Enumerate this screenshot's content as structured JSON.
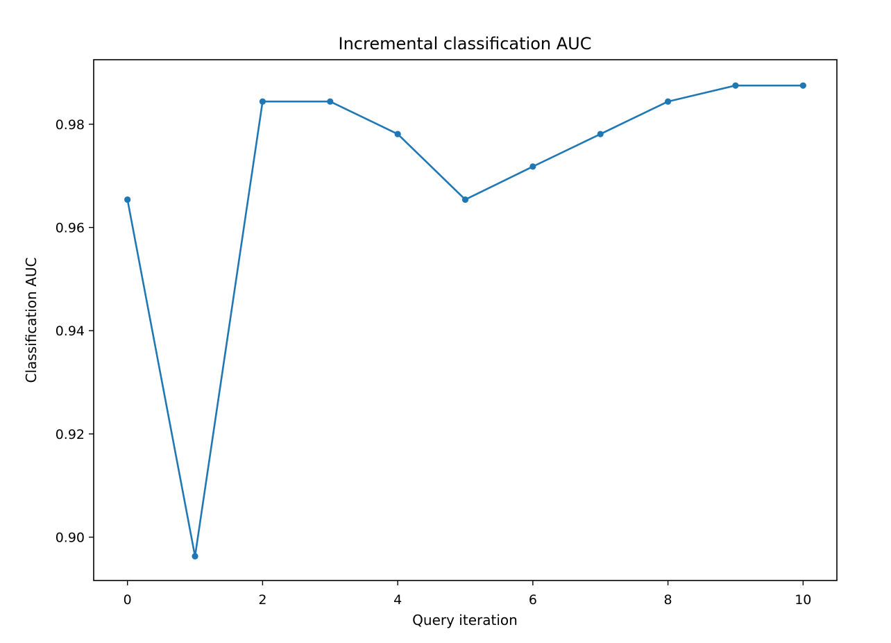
{
  "chart_data": {
    "type": "line",
    "title": "Incremental classification AUC",
    "xlabel": "Query iteration",
    "ylabel": "Classification AUC",
    "xlim": [
      -0.5,
      10.5
    ],
    "ylim": [
      0.8916,
      0.9925
    ],
    "x_ticks": [
      0,
      2,
      4,
      6,
      8,
      10
    ],
    "y_ticks": [
      0.9,
      0.92,
      0.94,
      0.96,
      0.98
    ],
    "x_tick_labels": [
      "0",
      "2",
      "4",
      "6",
      "8",
      "10"
    ],
    "y_tick_labels": [
      "0.90",
      "0.92",
      "0.94",
      "0.96",
      "0.98"
    ],
    "grid": false,
    "legend": "none",
    "series": [
      {
        "color": "#1f77b4",
        "marker": "circle",
        "x": [
          0,
          1,
          2,
          3,
          4,
          5,
          6,
          7,
          8,
          9,
          10
        ],
        "y": [
          0.9654,
          0.8963,
          0.9844,
          0.9844,
          0.9781,
          0.9654,
          0.9718,
          0.9781,
          0.9844,
          0.9875,
          0.9875
        ]
      }
    ]
  }
}
